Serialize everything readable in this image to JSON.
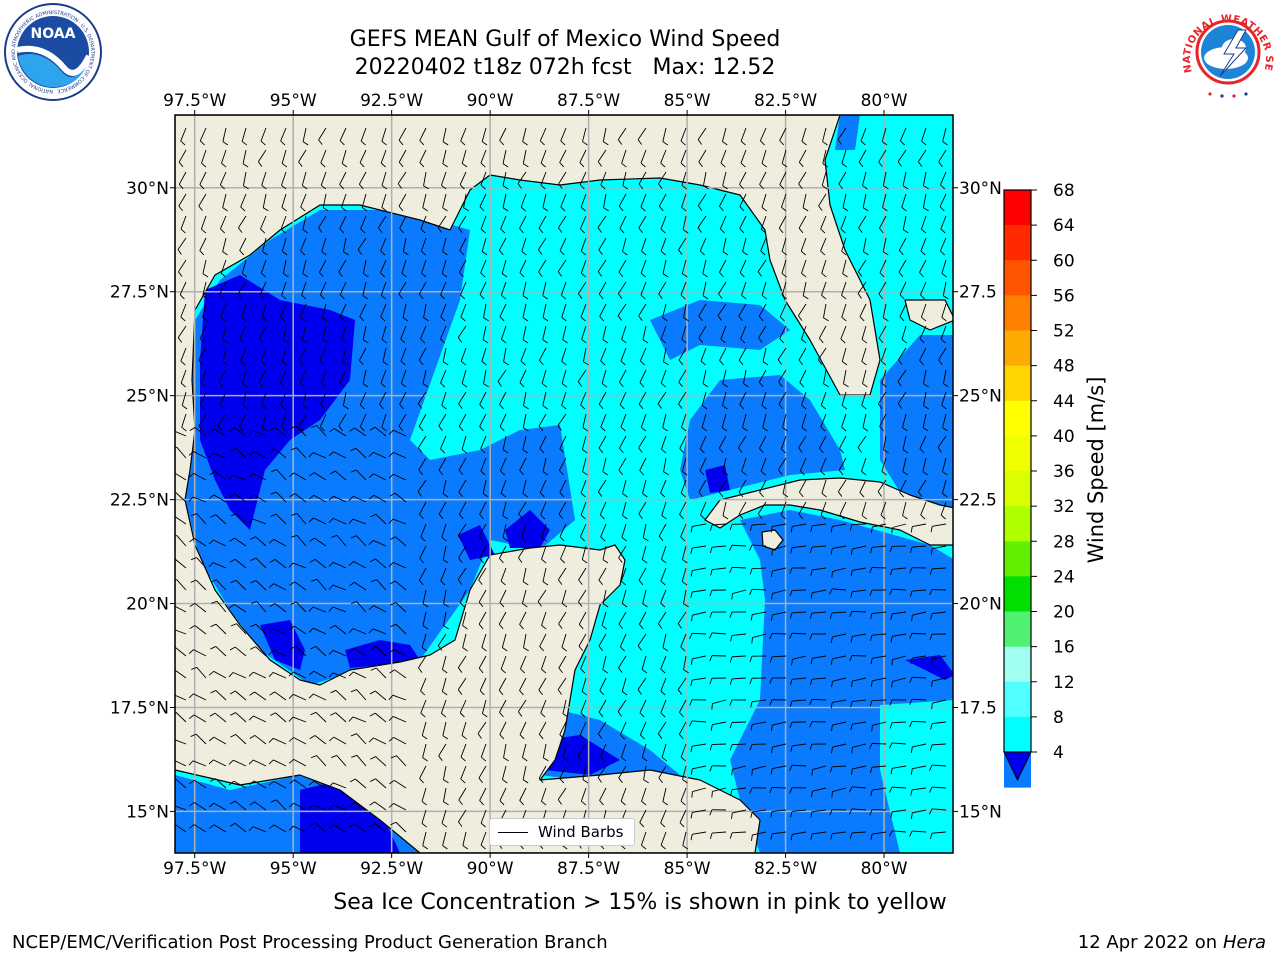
{
  "title": {
    "line1": "GEFS MEAN Gulf of Mexico Wind Speed",
    "line2": "20220402 t18z 072h fcst   Max: 12.52"
  },
  "logos": {
    "noaa": {
      "text": "NOAA",
      "ring": "NATIONAL OCEANIC AND ATMOSPHERIC ADMINISTRATION · U.S. DEPARTMENT OF COMMERCE"
    },
    "nws": {
      "ring": "NATIONAL WEATHER SERVICE"
    }
  },
  "map": {
    "lon_ticks": [
      "97.5°W",
      "95°W",
      "92.5°W",
      "90°W",
      "87.5°W",
      "85°W",
      "82.5°W",
      "80°W"
    ],
    "lat_ticks_left": [
      "30°N",
      "27.5°N",
      "25°N",
      "22.5°N",
      "20°N",
      "17.5°N",
      "15°N"
    ],
    "lat_ticks_right": [
      "30°N",
      "27.5",
      "25°N",
      "22.5",
      "20°N",
      "17.5",
      "15°N"
    ],
    "colors": {
      "land": "#efedde",
      "band_4_8": "#0a7bff",
      "band_8_12": "#00ffff",
      "band_lt4": "#0000ee",
      "grid": "#b0b0b0",
      "coast": "#000000"
    },
    "legend_label": "Wind Barbs"
  },
  "colorbar": {
    "label": "Wind Speed [m/s]",
    "ticks": [
      "68",
      "64",
      "60",
      "56",
      "52",
      "48",
      "44",
      "40",
      "36",
      "32",
      "28",
      "24",
      "20",
      "16",
      "12",
      "8",
      "4"
    ],
    "colors": [
      "#ff0000",
      "#ff2a00",
      "#ff5500",
      "#ff8000",
      "#ffaa00",
      "#ffd400",
      "#ffff00",
      "#f0ff00",
      "#d9ff00",
      "#b0ff00",
      "#60f000",
      "#00e000",
      "#50f070",
      "#a0fff0",
      "#50ffff",
      "#00ffff",
      "#0a7bff"
    ],
    "extend_color": "#0000ee"
  },
  "subtitle": "Sea Ice Concentration > 15% is shown in pink to yellow",
  "footer": {
    "left": "NCEP/EMC/Verification Post Processing Product Generation Branch",
    "right_date": "12 Apr 2022 on ",
    "right_host": "Hera"
  }
}
